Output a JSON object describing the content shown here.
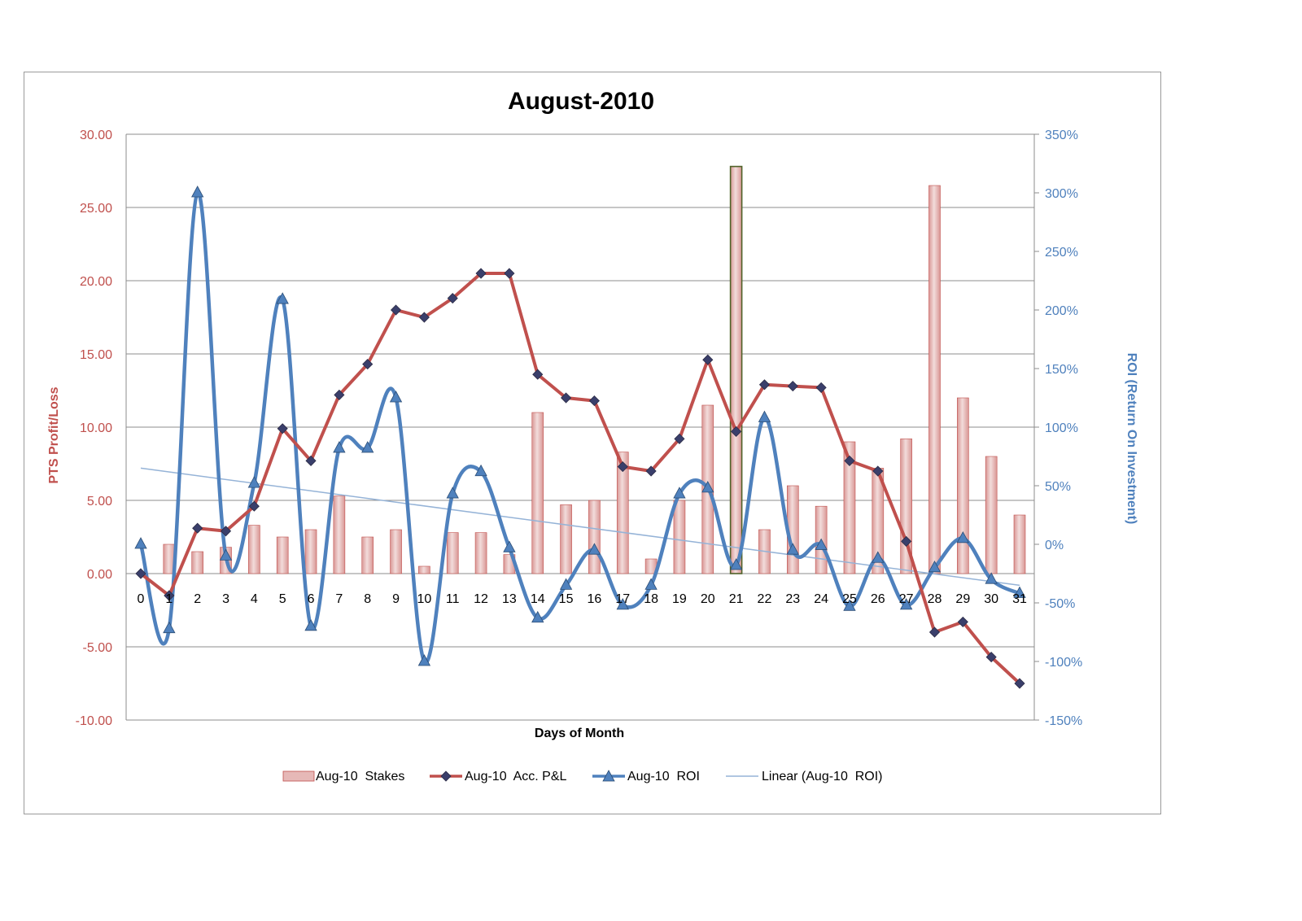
{
  "chart_data": {
    "type": "bar+line",
    "title": "August-2010",
    "xlabel": "Days of Month",
    "ylabel_left": "PTS Profit/Loss",
    "ylabel_right": "ROI (Return On Investment)",
    "x": [
      0,
      1,
      2,
      3,
      4,
      5,
      6,
      7,
      8,
      9,
      10,
      11,
      12,
      13,
      14,
      15,
      16,
      17,
      18,
      19,
      20,
      21,
      22,
      23,
      24,
      25,
      26,
      27,
      28,
      29,
      30,
      31
    ],
    "x_tick_labels": [
      "0",
      "1",
      "2",
      "3",
      "4",
      "5",
      "6",
      "7",
      "8",
      "9",
      "10",
      "11",
      "12",
      "13",
      "14",
      "15",
      "16",
      "17",
      "18",
      "19",
      "20",
      "21",
      "22",
      "23",
      "24",
      "25",
      "26",
      "27",
      "28",
      "29",
      "30",
      "31"
    ],
    "ylim_left": [
      -10,
      30
    ],
    "y_ticks_left": [
      "30.00",
      "25.00",
      "20.00",
      "15.00",
      "10.00",
      "5.00",
      "0.00",
      "-5.00",
      "-10.00"
    ],
    "ylim_right": [
      -150,
      350
    ],
    "y_ticks_right": [
      "350%",
      "300%",
      "250%",
      "200%",
      "150%",
      "100%",
      "50%",
      "0%",
      "-50%",
      "-100%",
      "-150%"
    ],
    "series": [
      {
        "name": "Aug-10  Stakes",
        "kind": "bar",
        "axis": "left",
        "color": "#e6b8b7",
        "values": [
          null,
          2.0,
          1.5,
          1.8,
          3.3,
          2.5,
          3.0,
          5.3,
          2.5,
          3.0,
          0.5,
          2.8,
          2.8,
          1.3,
          11.0,
          4.7,
          5.0,
          8.3,
          1.0,
          5.0,
          11.5,
          27.8,
          3.0,
          6.0,
          4.6,
          9.0,
          7.2,
          9.2,
          26.5,
          12.0,
          8.0,
          4.0
        ]
      },
      {
        "name": "Aug-10  Acc. P&L",
        "kind": "line",
        "axis": "left",
        "color": "#c0504d",
        "marker": "diamond",
        "values": [
          0.0,
          -1.5,
          3.1,
          2.9,
          4.6,
          9.9,
          7.7,
          12.2,
          14.3,
          18.0,
          17.5,
          18.8,
          20.5,
          20.5,
          13.6,
          12.0,
          11.8,
          7.3,
          7.0,
          9.2,
          14.6,
          9.7,
          12.9,
          12.8,
          12.7,
          7.7,
          7.0,
          2.2,
          -4.0,
          -3.3,
          -5.7,
          -7.5
        ]
      },
      {
        "name": "Aug-10  ROI",
        "kind": "line",
        "axis": "right",
        "color": "#4f81bd",
        "marker": "triangle",
        "smooth": true,
        "values": [
          0,
          -72,
          300,
          -10,
          52,
          209,
          -70,
          82,
          82,
          125,
          -100,
          43,
          62,
          -3,
          -63,
          -35,
          -5,
          -52,
          -35,
          43,
          48,
          -18,
          108,
          -5,
          -1,
          -53,
          -12,
          -52,
          -20,
          5,
          -30,
          -42
        ]
      },
      {
        "name": "Linear (Aug-10  ROI)",
        "kind": "trendline",
        "axis": "right",
        "color": "#95b3d7",
        "from": [
          0,
          65
        ],
        "to": [
          31,
          -35
        ]
      }
    ],
    "highlight": {
      "day": 21,
      "color": "#4f6228"
    },
    "legend_position": "bottom"
  }
}
